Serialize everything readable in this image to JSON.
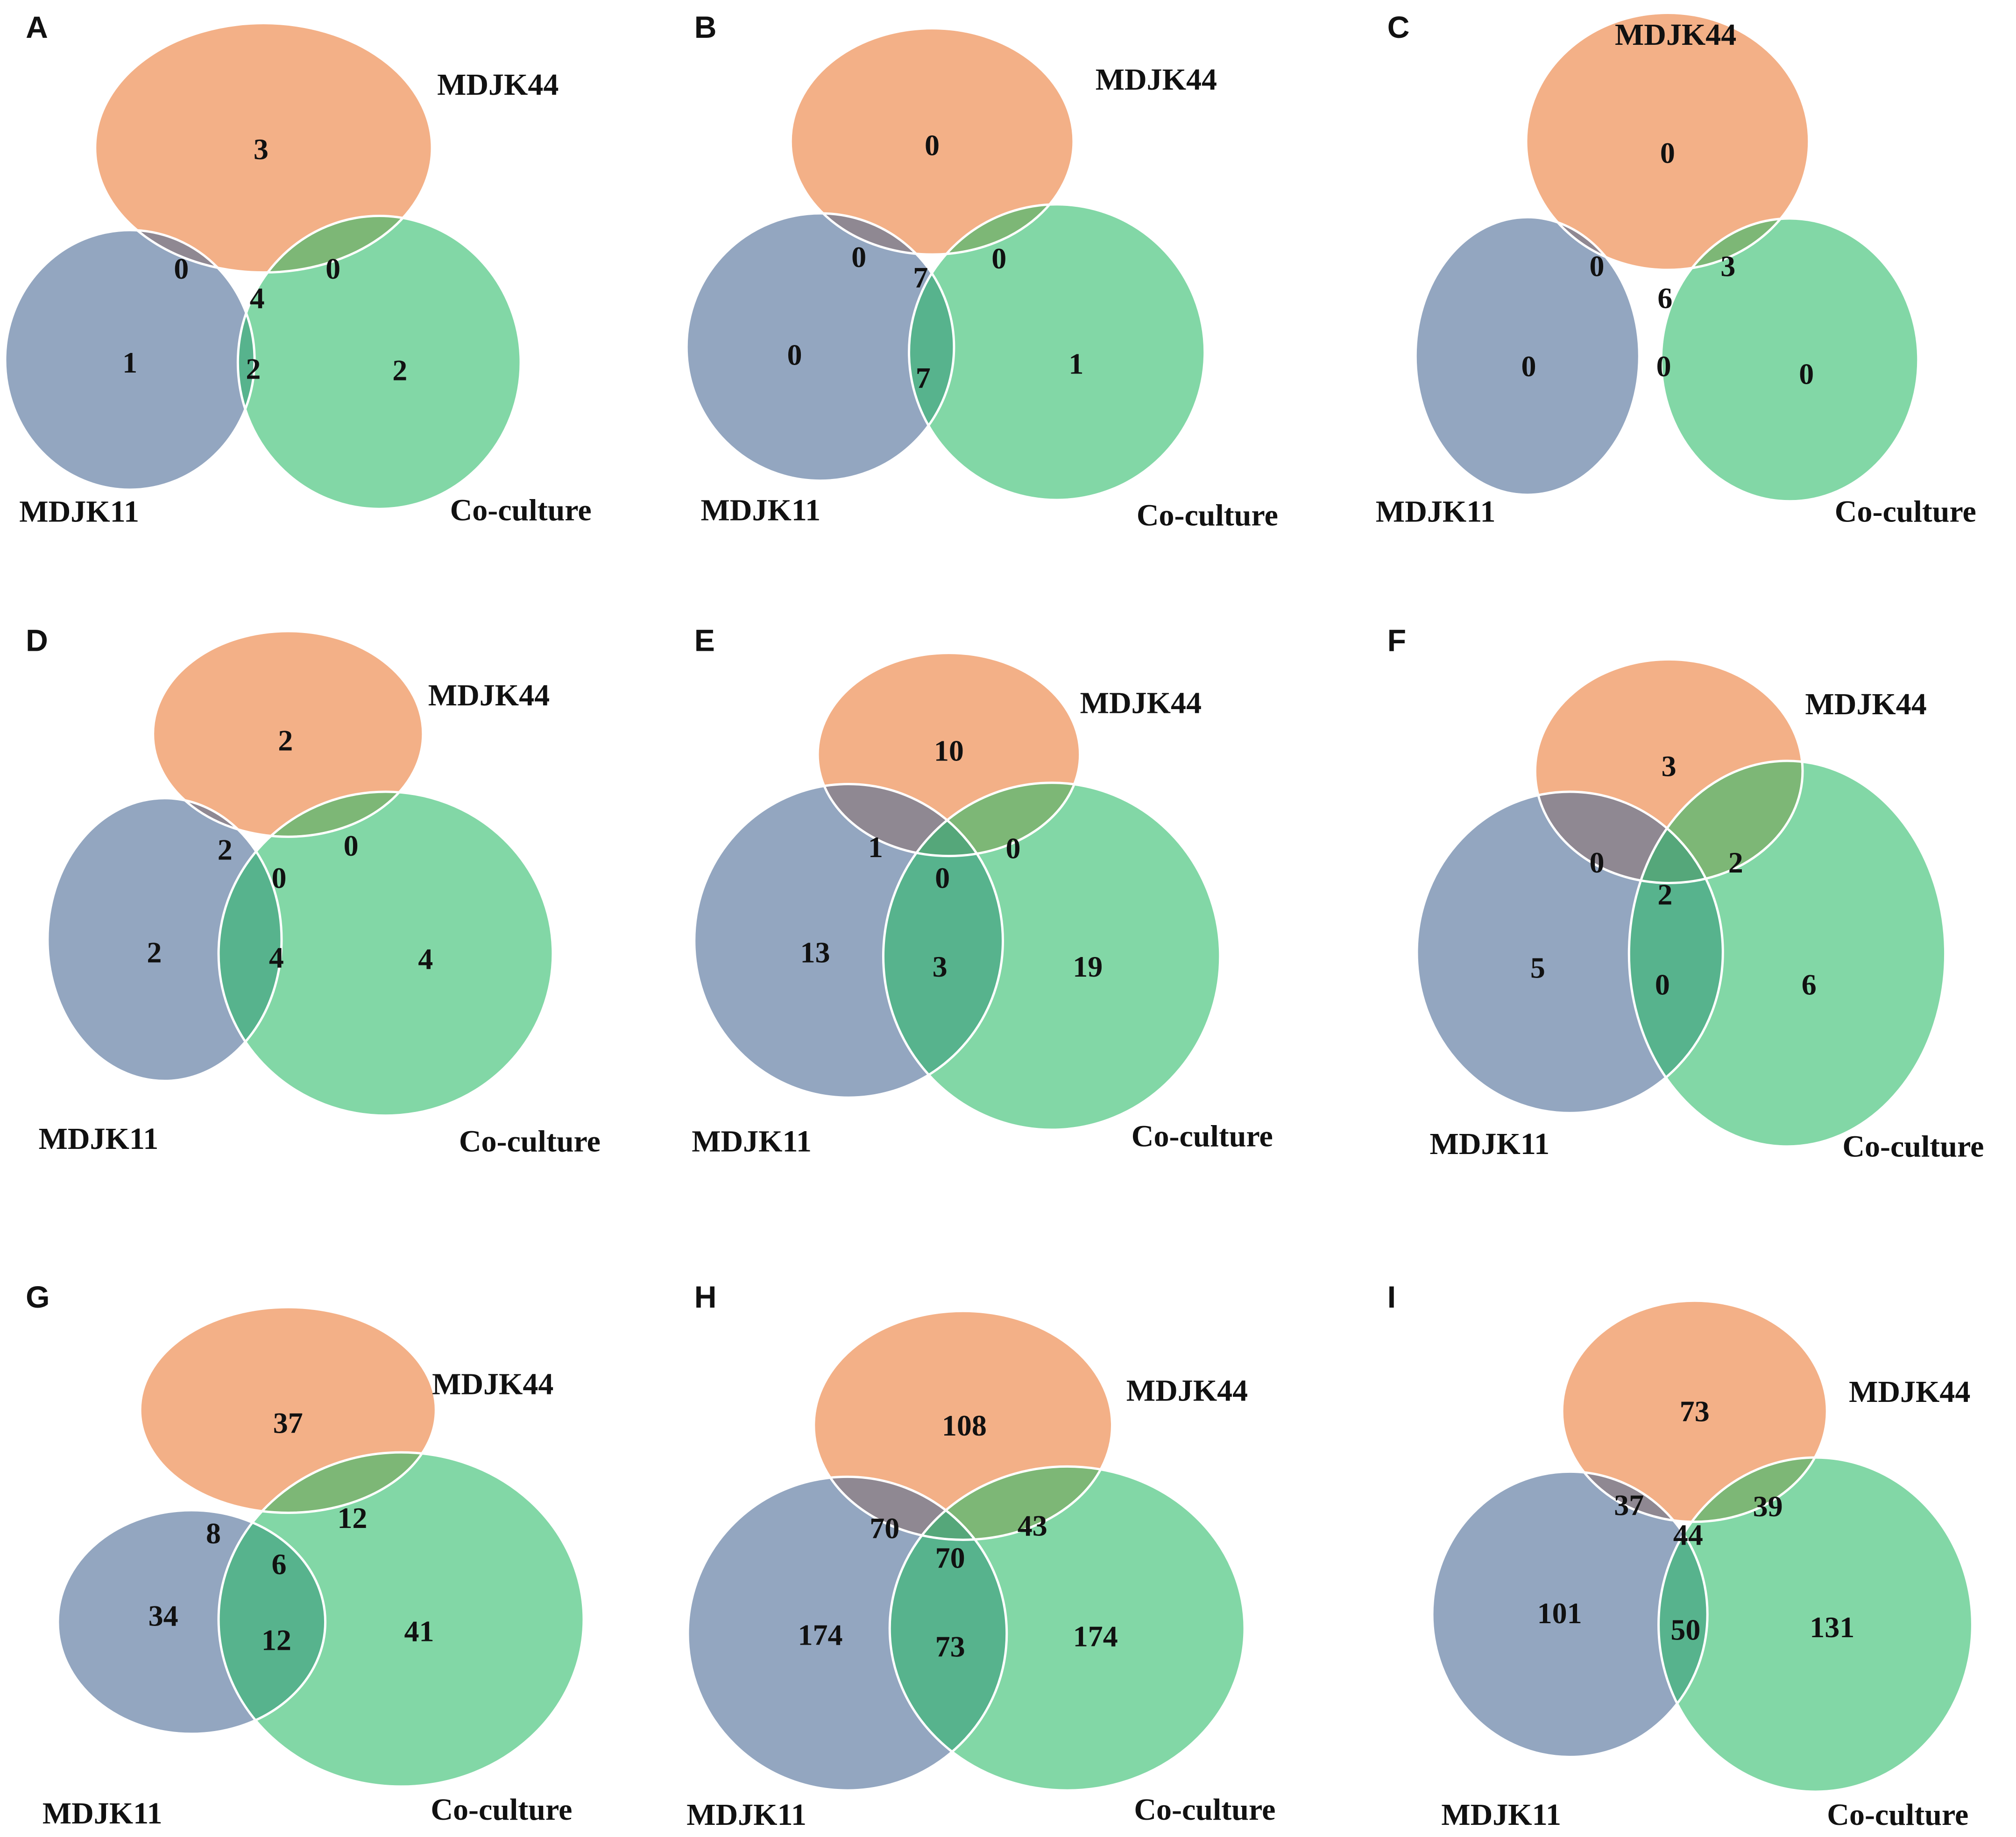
{
  "set_names": {
    "top": "MDJK44",
    "left": "MDJK11",
    "right": "Co-culture"
  },
  "colors": {
    "top": "#ee8b4e",
    "left": "#516f9a",
    "right": "#2fbd6b"
  },
  "panels": [
    {
      "letter": "A",
      "counts": {
        "top": "3",
        "left": "1",
        "right": "2",
        "top_left": "0",
        "top_right": "0",
        "left_right": "2",
        "all": "4"
      }
    },
    {
      "letter": "B",
      "counts": {
        "top": "0",
        "left": "0",
        "right": "1",
        "top_left": "0",
        "top_right": "0",
        "left_right": "7",
        "all": "7"
      }
    },
    {
      "letter": "C",
      "counts": {
        "top": "0",
        "left": "0",
        "right": "0",
        "top_left": "0",
        "top_right": "3",
        "left_right": "0",
        "all": "6"
      }
    },
    {
      "letter": "D",
      "counts": {
        "top": "2",
        "left": "2",
        "right": "4",
        "top_left": "2",
        "top_right": "0",
        "left_right": "4",
        "all": "0"
      }
    },
    {
      "letter": "E",
      "counts": {
        "top": "10",
        "left": "13",
        "right": "19",
        "top_left": "1",
        "top_right": "0",
        "left_right": "3",
        "all": "0"
      }
    },
    {
      "letter": "F",
      "counts": {
        "top": "3",
        "left": "5",
        "right": "6",
        "top_left": "0",
        "top_right": "2",
        "left_right": "0",
        "all": "2"
      }
    },
    {
      "letter": "G",
      "counts": {
        "top": "37",
        "left": "34",
        "right": "41",
        "top_left": "8",
        "top_right": "12",
        "left_right": "12",
        "all": "6"
      }
    },
    {
      "letter": "H",
      "counts": {
        "top": "108",
        "left": "174",
        "right": "174",
        "top_left": "70",
        "top_right": "43",
        "left_right": "73",
        "all": "70"
      }
    },
    {
      "letter": "I",
      "counts": {
        "top": "73",
        "left": "101",
        "right": "131",
        "top_left": "37",
        "top_right": "39",
        "left_right": "50",
        "all": "44"
      }
    }
  ]
}
